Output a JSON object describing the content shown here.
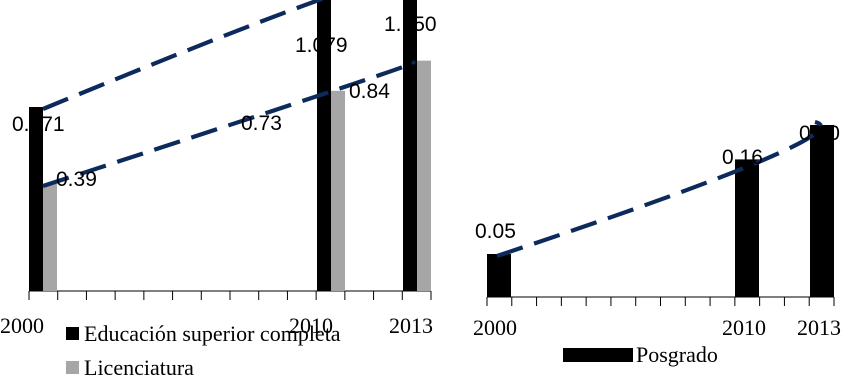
{
  "chart_data": [
    {
      "type": "bar",
      "x": [
        2000,
        2010,
        2013
      ],
      "tick_labels": [
        "2000",
        "2010",
        "2013"
      ],
      "ylim": [
        0,
        1.3
      ],
      "series": [
        {
          "name": "Educación superior completa",
          "color": "#000000",
          "values": [
            0.671,
            1.079,
            1.15
          ],
          "labels": [
            "0.671",
            "1.079",
            "1.150"
          ]
        },
        {
          "name": "Licenciatura",
          "color": "#a6a6a6",
          "values": [
            0.39,
            0.73,
            0.84
          ],
          "labels": [
            "0.39",
            "0.73",
            "0.84"
          ]
        }
      ],
      "trendlines": {
        "color": "#0d2a5c",
        "style": "dashed"
      }
    },
    {
      "type": "bar",
      "x": [
        2000,
        2010,
        2013
      ],
      "tick_labels": [
        "2000",
        "2010",
        "2013"
      ],
      "ylim": [
        0,
        0.28
      ],
      "series": [
        {
          "name": "Posgrado",
          "color": "#000000",
          "values": [
            0.05,
            0.16,
            0.2
          ],
          "labels": [
            "0.05",
            "0.16",
            "0.20"
          ]
        }
      ],
      "trendlines": {
        "color": "#0d2a5c",
        "style": "dashed"
      }
    }
  ]
}
